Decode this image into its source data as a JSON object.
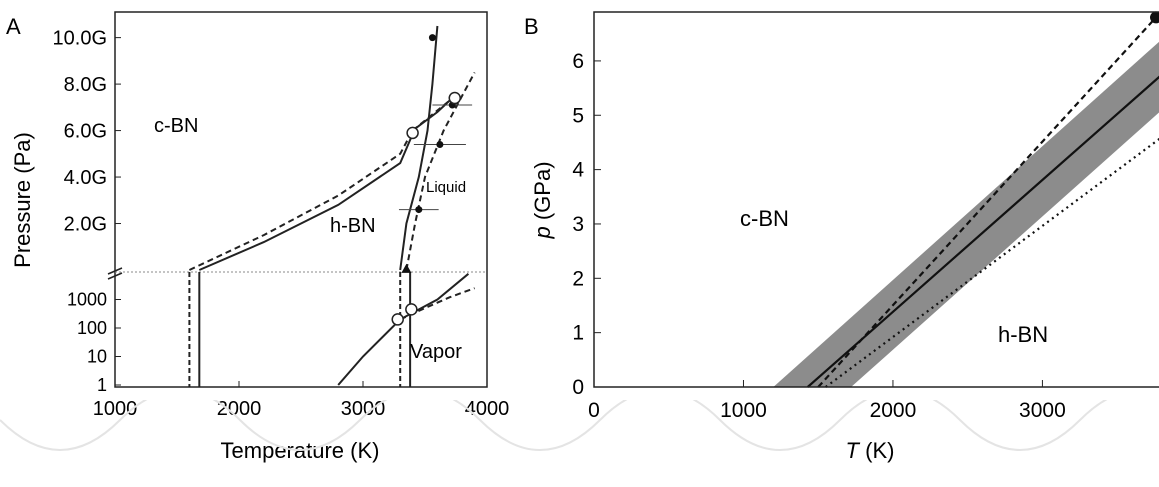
{
  "chart_data": [
    {
      "panel": "A",
      "type": "line",
      "xlabel": "Temperature (K)",
      "ylabel": "Pressure (Pa)",
      "xlim": [
        1000,
        4000
      ],
      "x_ticks": [
        "1000",
        "2000",
        "3000",
        "4000"
      ],
      "y_ticks_upper": [
        "10.0G",
        "8.0G",
        "6.0G",
        "4.0G",
        "2.0G"
      ],
      "y_ticks_lower": [
        "1000",
        "100",
        "10",
        "1"
      ],
      "axis_break": true,
      "region_labels": [
        "c-BN",
        "h-BN",
        "Liquid",
        "Vapor"
      ],
      "series": [
        {
          "style": "solid",
          "x": [
            1680,
            2200,
            2800,
            3300,
            3400
          ],
          "y": [
            0.0,
            1.2,
            2.8,
            4.6,
            5.85
          ]
        },
        {
          "style": "dashed",
          "x": [
            1600,
            2200,
            2800,
            3300,
            3400
          ],
          "y": [
            0.0,
            1.5,
            3.2,
            5.0,
            6.0
          ]
        },
        {
          "style": "solid",
          "x": [
            3300,
            3350,
            3450,
            3520,
            3560,
            3600
          ],
          "y": [
            0.0,
            2.0,
            4.0,
            6.0,
            8.0,
            10.5
          ]
        },
        {
          "style": "dashed",
          "x": [
            3350,
            3420,
            3500,
            3650,
            3800,
            3900
          ],
          "y": [
            0.0,
            2.0,
            4.0,
            6.0,
            7.5,
            8.5
          ]
        },
        {
          "style": "dashed",
          "x": [
            3400,
            3700
          ],
          "y": [
            6.0,
            7.3
          ]
        },
        {
          "style": "solid",
          "x": [
            3400,
            3600,
            3700
          ],
          "y": [
            6.0,
            6.8,
            7.3
          ]
        },
        {
          "style": "solid_log",
          "x": [
            2800,
            3000,
            3300,
            3600,
            3850
          ],
          "y": [
            1,
            10,
            200,
            1000,
            8000
          ]
        },
        {
          "style": "dashed_log",
          "x": [
            3300,
            3500,
            3700,
            3900
          ],
          "y": [
            200,
            500,
            1200,
            2500
          ]
        }
      ],
      "points": [
        {
          "x": 3560,
          "y": 10.0,
          "kind": "filled"
        },
        {
          "x": 3720,
          "y": 7.1,
          "kind": "filled",
          "xerr": 160
        },
        {
          "x": 3620,
          "y": 5.4,
          "kind": "filled",
          "xerr": 210
        },
        {
          "x": 3450,
          "y": 2.6,
          "kind": "filled",
          "xerr": 160
        },
        {
          "x": 3350,
          "y": 0.05,
          "kind": "triangle"
        },
        {
          "x": 3400,
          "y": 5.9,
          "kind": "open"
        },
        {
          "x": 3740,
          "y": 7.4,
          "kind": "open"
        },
        {
          "x": 3280,
          "y": 200,
          "kind": "open_log"
        },
        {
          "x": 3390,
          "y": 450,
          "kind": "open_log"
        }
      ]
    },
    {
      "panel": "B",
      "type": "line",
      "xlabel": "T (K)",
      "ylabel": "p (GPa)",
      "xlim": [
        0,
        3800
      ],
      "ylim": [
        0,
        6.9
      ],
      "x_ticks": [
        "0",
        "1000",
        "2000",
        "3000"
      ],
      "y_ticks": [
        "0",
        "1",
        "2",
        "3",
        "4",
        "5",
        "6"
      ],
      "region_labels": [
        "c-BN",
        "h-BN"
      ],
      "band": {
        "x": [
          1200,
          1720,
          3800
        ],
        "lower": [
          0,
          0,
          5.1
        ],
        "upper": [
          0,
          0,
          6.4
        ]
      },
      "series": [
        {
          "style": "solid",
          "x": [
            1430,
            3800
          ],
          "y": [
            0,
            5.75
          ]
        },
        {
          "style": "dashed",
          "x": [
            1500,
            3760
          ],
          "y": [
            0,
            6.8
          ]
        },
        {
          "style": "dotted",
          "x": [
            1550,
            3800
          ],
          "y": [
            0,
            4.6
          ]
        }
      ],
      "points": [
        {
          "x": 3760,
          "y": 6.8,
          "kind": "filled"
        }
      ]
    }
  ]
}
